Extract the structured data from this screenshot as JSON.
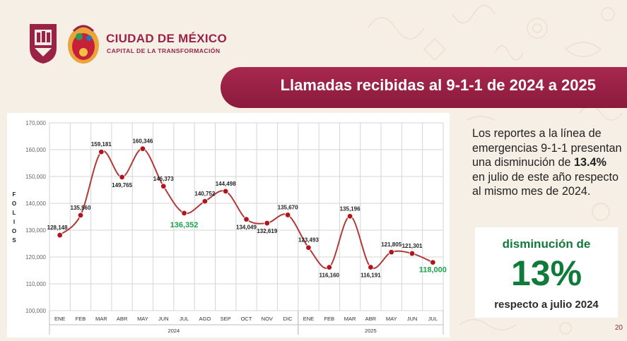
{
  "header": {
    "brand_title": "CIUDAD DE MÉXICO",
    "brand_subtitle": "CAPITAL DE LA TRANSFORMACIÓN",
    "banner_title": "Llamadas recibidas al 9-1-1 de 2024 a 2025"
  },
  "side": {
    "text_before": "Los reportes a la línea de emergencias 9-1-1 presentan una disminución de ",
    "text_bold": "13.4%",
    "text_after": " en julio de este año respecto al mismo mes de 2024."
  },
  "callout": {
    "line1": "disminución de",
    "big": "13%",
    "line3": "respecto a julio 2024"
  },
  "page_number": "20",
  "colors": {
    "brand": "#9b2247",
    "line": "#b03a3a",
    "marker": "#b0151a",
    "highlight_green": "#19a34a",
    "callout_green": "#0f7a39"
  },
  "chart_data": {
    "type": "line",
    "ylabel": "FOLIOS",
    "ylim": [
      100000,
      170000
    ],
    "yticks": [
      "100,000",
      "110,000",
      "120,000",
      "130,000",
      "140,000",
      "150,000",
      "160,000",
      "170,000"
    ],
    "grid": true,
    "categories": [
      "ENE",
      "FEB",
      "MAR",
      "ABR",
      "MAY",
      "JUN",
      "JUL",
      "AGO",
      "SEP",
      "OCT",
      "NOV",
      "DIC",
      "ENE",
      "FEB",
      "MAR",
      "ABR",
      "MAY",
      "JUN",
      "JUL"
    ],
    "year_groups": [
      {
        "label": "2024",
        "start": 0,
        "end": 11
      },
      {
        "label": "2025",
        "start": 12,
        "end": 18
      }
    ],
    "values": [
      128148,
      135560,
      159181,
      149765,
      160346,
      146373,
      136352,
      140752,
      144498,
      134049,
      132619,
      135670,
      123493,
      116160,
      135196,
      116191,
      121805,
      121301,
      118000
    ],
    "labels": [
      "128,148",
      "135,560",
      "159,181",
      "149,765",
      "160,346",
      "146,373",
      "136,352",
      "140,752",
      "144,498",
      "134,049",
      "132,619",
      "135,670",
      "123,493",
      "116,160",
      "135,196",
      "116,191",
      "121,805",
      "121,301",
      "118,000"
    ],
    "highlight_indices": [
      6,
      18
    ]
  }
}
